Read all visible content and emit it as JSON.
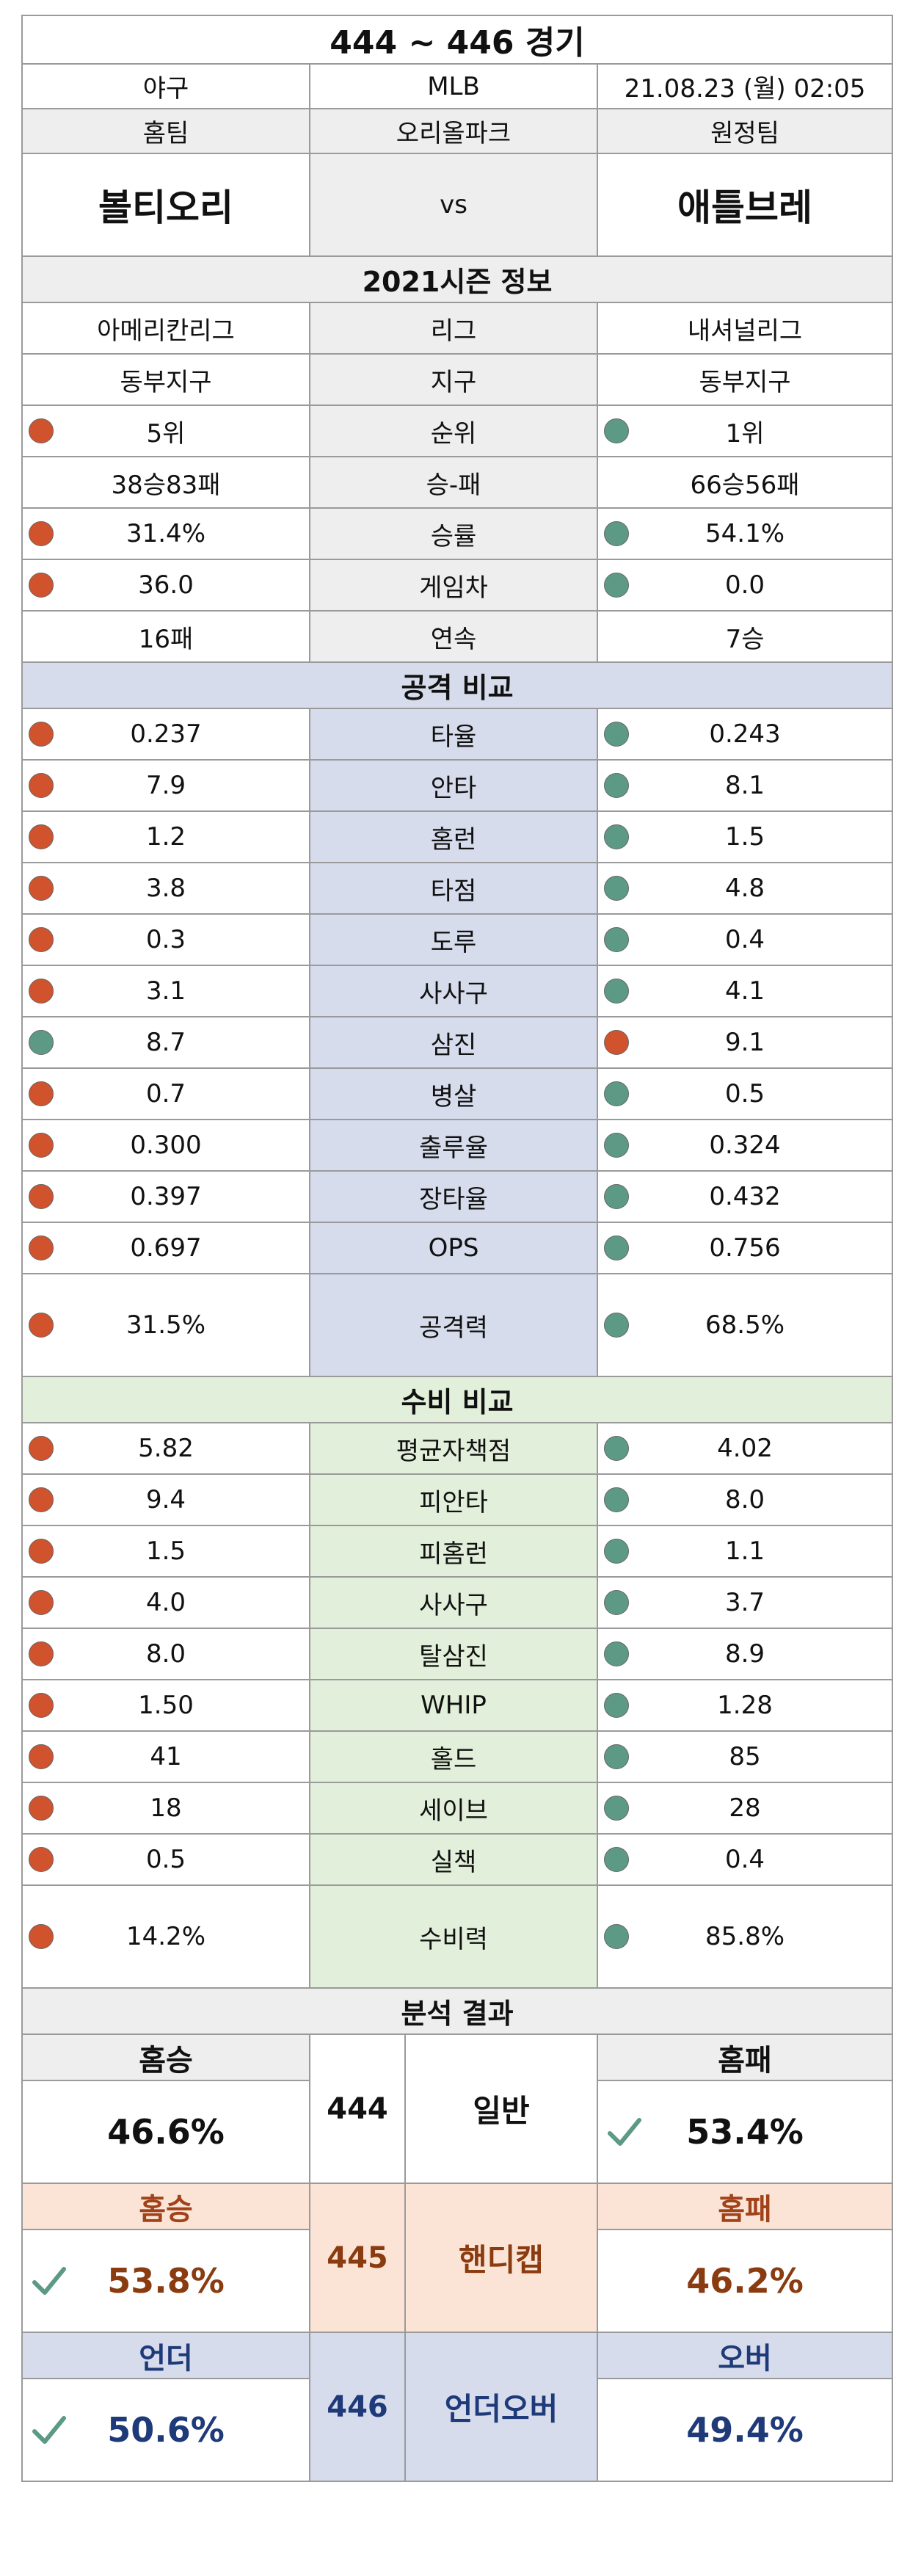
{
  "header": {
    "title": "444 ~ 446 경기",
    "sport": "야구",
    "league": "MLB",
    "datetime": "21.08.23 (월) 02:05",
    "home_label": "홈팀",
    "stadium": "오리올파크",
    "away_label": "원정팀",
    "home_team": "볼티오리",
    "vs": "vs",
    "away_team": "애틀브레"
  },
  "season": {
    "section_title": "2021시즌 정보",
    "rows": [
      {
        "label": "리그",
        "home": "아메리칸리그",
        "away": "내셔널리그",
        "home_dot": "",
        "away_dot": ""
      },
      {
        "label": "지구",
        "home": "동부지구",
        "away": "동부지구",
        "home_dot": "",
        "away_dot": ""
      },
      {
        "label": "순위",
        "home": "5위",
        "away": "1위",
        "home_dot": "red",
        "away_dot": "green"
      },
      {
        "label": "승-패",
        "home": "38승83패",
        "away": "66승56패",
        "home_dot": "",
        "away_dot": ""
      },
      {
        "label": "승률",
        "home": "31.4%",
        "away": "54.1%",
        "home_dot": "red",
        "away_dot": "green"
      },
      {
        "label": "게임차",
        "home": "36.0",
        "away": "0.0",
        "home_dot": "red",
        "away_dot": "green"
      },
      {
        "label": "연속",
        "home": "16패",
        "away": "7승",
        "home_dot": "",
        "away_dot": ""
      }
    ]
  },
  "attack": {
    "section_title": "공격 비교",
    "rows": [
      {
        "label": "타율",
        "home": "0.237",
        "away": "0.243",
        "home_dot": "red",
        "away_dot": "green"
      },
      {
        "label": "안타",
        "home": "7.9",
        "away": "8.1",
        "home_dot": "red",
        "away_dot": "green"
      },
      {
        "label": "홈런",
        "home": "1.2",
        "away": "1.5",
        "home_dot": "red",
        "away_dot": "green"
      },
      {
        "label": "타점",
        "home": "3.8",
        "away": "4.8",
        "home_dot": "red",
        "away_dot": "green"
      },
      {
        "label": "도루",
        "home": "0.3",
        "away": "0.4",
        "home_dot": "red",
        "away_dot": "green"
      },
      {
        "label": "사사구",
        "home": "3.1",
        "away": "4.1",
        "home_dot": "red",
        "away_dot": "green"
      },
      {
        "label": "삼진",
        "home": "8.7",
        "away": "9.1",
        "home_dot": "green",
        "away_dot": "red"
      },
      {
        "label": "병살",
        "home": "0.7",
        "away": "0.5",
        "home_dot": "red",
        "away_dot": "green"
      },
      {
        "label": "출루율",
        "home": "0.300",
        "away": "0.324",
        "home_dot": "red",
        "away_dot": "green"
      },
      {
        "label": "장타율",
        "home": "0.397",
        "away": "0.432",
        "home_dot": "red",
        "away_dot": "green"
      },
      {
        "label": "OPS",
        "home": "0.697",
        "away": "0.756",
        "home_dot": "red",
        "away_dot": "green"
      }
    ],
    "power": {
      "label": "공격력",
      "home": "31.5%",
      "away": "68.5%",
      "home_dot": "red",
      "away_dot": "green"
    }
  },
  "defense": {
    "section_title": "수비 비교",
    "rows": [
      {
        "label": "평균자책점",
        "home": "5.82",
        "away": "4.02",
        "home_dot": "red",
        "away_dot": "green"
      },
      {
        "label": "피안타",
        "home": "9.4",
        "away": "8.0",
        "home_dot": "red",
        "away_dot": "green"
      },
      {
        "label": "피홈런",
        "home": "1.5",
        "away": "1.1",
        "home_dot": "red",
        "away_dot": "green"
      },
      {
        "label": "사사구",
        "home": "4.0",
        "away": "3.7",
        "home_dot": "red",
        "away_dot": "green"
      },
      {
        "label": "탈삼진",
        "home": "8.0",
        "away": "8.9",
        "home_dot": "red",
        "away_dot": "green"
      },
      {
        "label": "WHIP",
        "home": "1.50",
        "away": "1.28",
        "home_dot": "red",
        "away_dot": "green"
      },
      {
        "label": "홀드",
        "home": "41",
        "away": "85",
        "home_dot": "red",
        "away_dot": "green"
      },
      {
        "label": "세이브",
        "home": "18",
        "away": "28",
        "home_dot": "red",
        "away_dot": "green"
      },
      {
        "label": "실책",
        "home": "0.5",
        "away": "0.4",
        "home_dot": "red",
        "away_dot": "green"
      }
    ],
    "power": {
      "label": "수비력",
      "home": "14.2%",
      "away": "85.8%",
      "home_dot": "red",
      "away_dot": "green"
    }
  },
  "analysis": {
    "section_title": "분석 결과",
    "general": {
      "num": "444",
      "label": "일반",
      "left_head": "홈승",
      "right_head": "홈패",
      "left_pct": "46.6%",
      "right_pct": "53.4%",
      "check": "right"
    },
    "handicap": {
      "num": "445",
      "label": "핸디캡",
      "left_head": "홈승",
      "right_head": "홈패",
      "left_pct": "53.8%",
      "right_pct": "46.2%",
      "check": "left"
    },
    "underover": {
      "num": "446",
      "label": "언더오버",
      "left_head": "언더",
      "right_head": "오버",
      "left_pct": "50.6%",
      "right_pct": "49.4%",
      "check": "left"
    }
  },
  "colors": {
    "red_dot": "#d0532e",
    "green_dot": "#5d9a86",
    "check": "#5d9a86"
  }
}
